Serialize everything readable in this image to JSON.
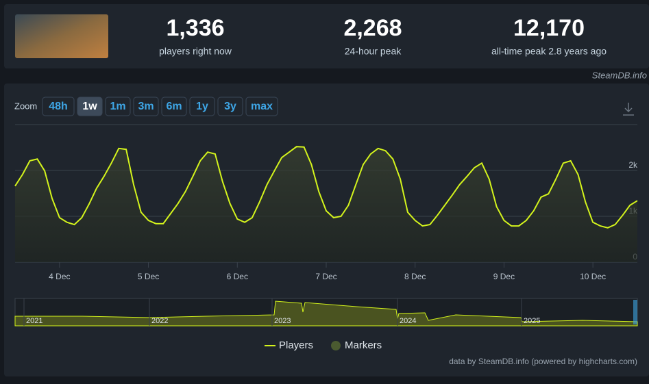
{
  "header": {
    "stats": [
      {
        "value": "1,336",
        "label": "players right now"
      },
      {
        "value": "2,268",
        "label": "24-hour peak"
      },
      {
        "value": "12,170",
        "label": "all-time peak 2.8 years ago"
      }
    ],
    "credit": "SteamDB.info"
  },
  "zoom": {
    "label": "Zoom",
    "buttons": [
      "48h",
      "1w",
      "1m",
      "3m",
      "6m",
      "1y",
      "3y",
      "max"
    ],
    "active": 1
  },
  "chart_data": {
    "type": "line",
    "categories": [
      null,
      null,
      null,
      null,
      null,
      null,
      "4 Dec",
      null,
      null,
      null,
      null,
      null,
      null,
      null,
      null,
      null,
      null,
      null,
      "5 Dec",
      null,
      null,
      null,
      null,
      null,
      null,
      null,
      null,
      null,
      null,
      null,
      "6 Dec",
      null,
      null,
      null,
      null,
      null,
      null,
      null,
      null,
      null,
      null,
      null,
      "7 Dec",
      null,
      null,
      null,
      null,
      null,
      null,
      null,
      null,
      null,
      null,
      null,
      "8 Dec",
      null,
      null,
      null,
      null,
      null,
      null,
      null,
      null,
      null,
      null,
      null,
      "9 Dec",
      null,
      null,
      null,
      null,
      null,
      null,
      null,
      null,
      null,
      null,
      null,
      "10 Dec",
      null,
      null,
      null,
      null,
      null,
      null
    ],
    "series": [
      {
        "name": "Players",
        "color": "#d4f41c",
        "values": [
          1660,
          1910,
          2210,
          2250,
          1990,
          1390,
          970,
          870,
          820,
          970,
          1270,
          1610,
          1870,
          2160,
          2480,
          2460,
          1690,
          1090,
          910,
          840,
          840,
          1060,
          1280,
          1540,
          1870,
          2210,
          2400,
          2360,
          1760,
          1280,
          940,
          870,
          970,
          1310,
          1690,
          1990,
          2280,
          2400,
          2520,
          2510,
          2130,
          1540,
          1120,
          970,
          1000,
          1240,
          1690,
          2130,
          2360,
          2480,
          2430,
          2250,
          1810,
          1090,
          910,
          790,
          820,
          1020,
          1240,
          1460,
          1690,
          1870,
          2060,
          2160,
          1810,
          1210,
          910,
          790,
          790,
          910,
          1120,
          1420,
          1490,
          1810,
          2160,
          2210,
          1910,
          1310,
          870,
          790,
          750,
          820,
          1020,
          1240,
          1340
        ]
      }
    ],
    "ylim": [
      0,
      3000
    ],
    "yticks": [
      0,
      {
        "value": 1000,
        "label": "1k"
      },
      {
        "value": 2000,
        "label": "2k"
      }
    ],
    "grid": true,
    "markers_label": "Markers",
    "credit": "data by SteamDB.info (powered by highcharts.com)"
  },
  "navigator": {
    "labels": [
      "2021",
      "2022",
      "2023",
      "2024",
      "2025"
    ]
  }
}
